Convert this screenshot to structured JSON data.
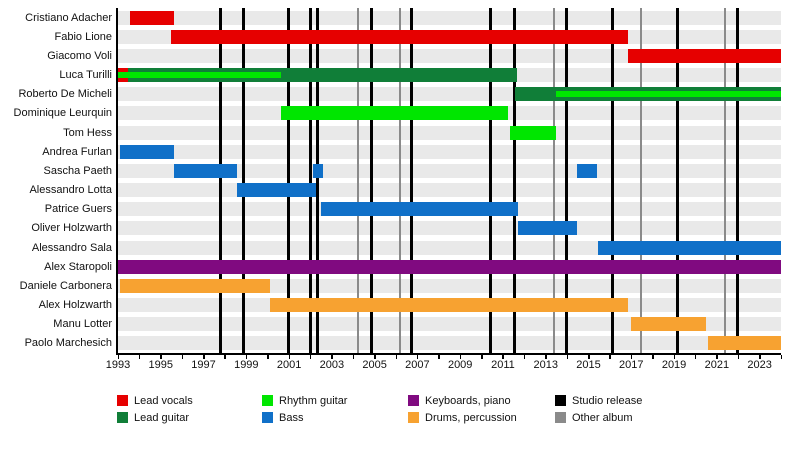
{
  "chart_data": {
    "type": "gantt",
    "title": "",
    "x_axis": {
      "start": 1993,
      "end": 2024,
      "labeled_ticks": [
        1993,
        1995,
        1997,
        1999,
        2001,
        2003,
        2005,
        2007,
        2009,
        2011,
        2013,
        2015,
        2017,
        2019,
        2021,
        2023
      ],
      "minor_tick_every_years": 1,
      "grid": "off"
    },
    "palette": {
      "lead_vocals": "#e60000",
      "lead_guitar": "#107e38",
      "rhythm_guitar": "#00e600",
      "bass": "#1070c8",
      "keyboards_piano": "#800a80",
      "drums_percussion": "#f7a231",
      "studio_release": "#000000",
      "other_album": "#8a8a8a",
      "row_band": "#e9e9e9"
    },
    "rows": [
      {
        "name": "Cristiano Adacher",
        "bars": [
          {
            "role": "lead_vocals",
            "start": 1993.55,
            "end": 1995.62,
            "layer": "full"
          }
        ]
      },
      {
        "name": "Fabio Lione",
        "bars": [
          {
            "role": "lead_vocals",
            "start": 1995.5,
            "end": 2016.85,
            "layer": "full"
          }
        ]
      },
      {
        "name": "Giacomo Voli",
        "bars": [
          {
            "role": "lead_vocals",
            "start": 2016.85,
            "end": 2024,
            "layer": "full"
          }
        ]
      },
      {
        "name": "Luca Turilli",
        "bars": [
          {
            "role": "lead_vocals",
            "start": 1993.0,
            "end": 1993.45,
            "layer": "full"
          },
          {
            "role": "lead_guitar",
            "start": 1993.45,
            "end": 2011.65,
            "layer": "full"
          },
          {
            "role": "rhythm_guitar",
            "start": 1993.0,
            "end": 2000.6,
            "layer": "inner"
          }
        ]
      },
      {
        "name": "Roberto De Micheli",
        "bars": [
          {
            "role": "lead_guitar",
            "start": 2011.55,
            "end": 2024,
            "layer": "full"
          },
          {
            "role": "rhythm_guitar",
            "start": 2013.5,
            "end": 2024,
            "layer": "inner"
          }
        ]
      },
      {
        "name": "Dominique Leurquin",
        "bars": [
          {
            "role": "rhythm_guitar",
            "start": 2000.6,
            "end": 2011.25,
            "layer": "full"
          }
        ]
      },
      {
        "name": "Tom Hess",
        "bars": [
          {
            "role": "rhythm_guitar",
            "start": 2011.35,
            "end": 2013.5,
            "layer": "full"
          }
        ]
      },
      {
        "name": "Andrea Furlan",
        "bars": [
          {
            "role": "bass",
            "start": 1993.1,
            "end": 1995.62,
            "layer": "full"
          }
        ]
      },
      {
        "name": "Sascha Paeth",
        "bars": [
          {
            "role": "bass",
            "start": 1995.62,
            "end": 1998.56,
            "layer": "full"
          },
          {
            "role": "bass",
            "start": 2002.12,
            "end": 2002.6,
            "layer": "full"
          },
          {
            "role": "bass",
            "start": 2014.47,
            "end": 2015.42,
            "layer": "full"
          }
        ]
      },
      {
        "name": "Alessandro Lotta",
        "bars": [
          {
            "role": "bass",
            "start": 1998.56,
            "end": 2002.25,
            "layer": "full"
          }
        ]
      },
      {
        "name": "Patrice Guers",
        "bars": [
          {
            "role": "bass",
            "start": 2002.5,
            "end": 2011.7,
            "layer": "full"
          }
        ]
      },
      {
        "name": "Oliver Holzwarth",
        "bars": [
          {
            "role": "bass",
            "start": 2011.7,
            "end": 2014.47,
            "layer": "full"
          }
        ]
      },
      {
        "name": "Alessandro Sala",
        "bars": [
          {
            "role": "bass",
            "start": 2015.45,
            "end": 2024,
            "layer": "full"
          }
        ]
      },
      {
        "name": "Alex Staropoli",
        "bars": [
          {
            "role": "keyboards_piano",
            "start": 1993.0,
            "end": 2024,
            "layer": "full"
          }
        ]
      },
      {
        "name": "Daniele Carbonera",
        "bars": [
          {
            "role": "drums_percussion",
            "start": 1993.1,
            "end": 2000.1,
            "layer": "full"
          }
        ]
      },
      {
        "name": "Alex Holzwarth",
        "bars": [
          {
            "role": "drums_percussion",
            "start": 2000.1,
            "end": 2016.85,
            "layer": "full"
          }
        ]
      },
      {
        "name": "Manu Lotter",
        "bars": [
          {
            "role": "drums_percussion",
            "start": 2017.0,
            "end": 2020.5,
            "layer": "full"
          }
        ]
      },
      {
        "name": "Paolo Marchesich",
        "bars": [
          {
            "role": "drums_percussion",
            "start": 2020.6,
            "end": 2024,
            "layer": "full"
          }
        ]
      }
    ],
    "event_lines": {
      "studio_releases": [
        1997.8,
        1998.85,
        2000.95,
        2002.0,
        2002.35,
        2004.85,
        2006.7,
        2010.4,
        2011.55,
        2013.95,
        2016.1,
        2019.15,
        2021.95
      ],
      "other_albums": [
        2004.2,
        2006.2,
        2013.4,
        2017.45,
        2021.4
      ]
    },
    "legend": {
      "position": "bottom",
      "columns": [
        [
          {
            "role": "lead_vocals",
            "label": "Lead vocals"
          },
          {
            "role": "lead_guitar",
            "label": "Lead guitar"
          }
        ],
        [
          {
            "role": "rhythm_guitar",
            "label": "Rhythm guitar"
          },
          {
            "role": "bass",
            "label": "Bass"
          }
        ],
        [
          {
            "role": "keyboards_piano",
            "label": "Keyboards, piano"
          },
          {
            "role": "drums_percussion",
            "label": "Drums, percussion"
          }
        ],
        [
          {
            "role": "studio_release",
            "label": "Studio release"
          },
          {
            "role": "other_album",
            "label": "Other album"
          }
        ]
      ]
    }
  }
}
